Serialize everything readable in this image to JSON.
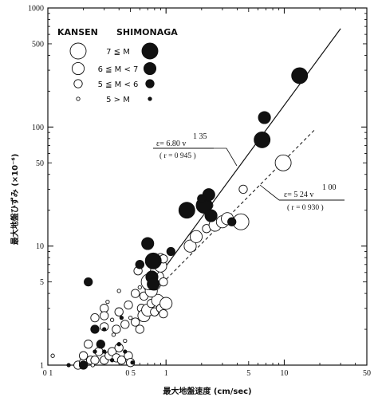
{
  "chart_data": {
    "type": "scatter",
    "x_scale": "log",
    "y_scale": "log",
    "xlim": [
      0.1,
      50
    ],
    "ylim": [
      1,
      1000
    ],
    "xlabel": "最大地盤速度 (cm/sec)",
    "ylabel": "最大地盤ひずみ (×10⁻⁶)",
    "x_tick_labels": [
      {
        "value": 0.1,
        "label": "0 1"
      },
      {
        "value": 0.5,
        "label": "0 5"
      },
      {
        "value": 1,
        "label": "1"
      },
      {
        "value": 5,
        "label": "5"
      },
      {
        "value": 10,
        "label": "10"
      },
      {
        "value": 50,
        "label": "50"
      }
    ],
    "y_tick_labels": [
      {
        "value": 1,
        "label": "1"
      },
      {
        "value": 5,
        "label": "5"
      },
      {
        "value": 10,
        "label": "10"
      },
      {
        "value": 50,
        "label": "50"
      },
      {
        "value": 100,
        "label": "100"
      },
      {
        "value": 500,
        "label": "500"
      },
      {
        "value": 1000,
        "label": "1000"
      }
    ],
    "legend": {
      "col_headers": [
        "KANSEN",
        "SHIMONAGA"
      ],
      "rows": [
        {
          "label": "7 ≦ M",
          "size": 4
        },
        {
          "label": "6 ≦ M < 7",
          "size": 3
        },
        {
          "label": "5 ≦ M < 6",
          "size": 2
        },
        {
          "label": "5 > M",
          "size": 1
        }
      ]
    },
    "fits": [
      {
        "series": "SHIMONAGA",
        "style": "solid",
        "coef": 6.8,
        "exp": 1.35,
        "eq_text": "ε= 6.80 v",
        "exp_text": "1 35",
        "r_text": "( r = 0 945 )"
      },
      {
        "series": "KANSEN",
        "style": "dashed",
        "coef": 5.24,
        "exp": 1.0,
        "eq_text": "ε= 5 24 v",
        "exp_text": "1 00",
        "r_text": "( r = 0 930 )"
      }
    ],
    "series": [
      {
        "name": "KANSEN",
        "marker": "open-circle",
        "points": [
          [
            0.11,
            1.2,
            1
          ],
          [
            0.18,
            1.0,
            2
          ],
          [
            0.2,
            1.05,
            2
          ],
          [
            0.23,
            1.1,
            2
          ],
          [
            0.25,
            1.1,
            2
          ],
          [
            0.24,
            1.0,
            1
          ],
          [
            0.27,
            1.3,
            2
          ],
          [
            0.3,
            1.1,
            2
          ],
          [
            0.29,
            1.5,
            1
          ],
          [
            0.33,
            1.2,
            2
          ],
          [
            0.35,
            1.3,
            2
          ],
          [
            0.38,
            1.15,
            2
          ],
          [
            0.4,
            1.4,
            2
          ],
          [
            0.42,
            1.1,
            2
          ],
          [
            0.45,
            1.6,
            1
          ],
          [
            0.48,
            1.2,
            2
          ],
          [
            0.5,
            1.05,
            2
          ],
          [
            0.36,
            1.8,
            1
          ],
          [
            0.25,
            2.5,
            2
          ],
          [
            0.3,
            2.1,
            2
          ],
          [
            0.3,
            3.0,
            2
          ],
          [
            0.35,
            2.4,
            1
          ],
          [
            0.38,
            2.0,
            2
          ],
          [
            0.4,
            2.8,
            2
          ],
          [
            0.45,
            2.2,
            2
          ],
          [
            0.5,
            2.5,
            1
          ],
          [
            0.55,
            2.3,
            2
          ],
          [
            0.6,
            2.0,
            2
          ],
          [
            0.48,
            3.2,
            2
          ],
          [
            0.62,
            3.0,
            2
          ],
          [
            0.65,
            2.6,
            3
          ],
          [
            0.7,
            2.9,
            3
          ],
          [
            0.75,
            3.3,
            2
          ],
          [
            0.8,
            2.8,
            2
          ],
          [
            0.85,
            3.5,
            3
          ],
          [
            0.9,
            3.0,
            2
          ],
          [
            0.95,
            2.7,
            2
          ],
          [
            1.0,
            3.3,
            3
          ],
          [
            0.55,
            4.0,
            2
          ],
          [
            0.6,
            4.5,
            1
          ],
          [
            0.7,
            4.6,
            2
          ],
          [
            0.65,
            3.8,
            2
          ],
          [
            0.75,
            4.2,
            3
          ],
          [
            0.8,
            4.8,
            3
          ],
          [
            0.72,
            5.0,
            4
          ],
          [
            0.85,
            5.5,
            3
          ],
          [
            0.95,
            5.0,
            2
          ],
          [
            0.8,
            6.2,
            2
          ],
          [
            0.9,
            6.8,
            3
          ],
          [
            0.58,
            6.2,
            2
          ],
          [
            0.6,
            7.0,
            2
          ],
          [
            0.85,
            7.5,
            2
          ],
          [
            0.9,
            8.0,
            2
          ],
          [
            0.95,
            7.8,
            2
          ],
          [
            0.3,
            2.6,
            2
          ],
          [
            0.32,
            3.4,
            1
          ],
          [
            0.4,
            4.2,
            1
          ],
          [
            0.2,
            1.2,
            2
          ],
          [
            0.22,
            1.5,
            2
          ],
          [
            0.21,
            1.0,
            1
          ],
          [
            1.6,
            10,
            3
          ],
          [
            1.8,
            12,
            3
          ],
          [
            2.2,
            14,
            2
          ],
          [
            2.6,
            15,
            3
          ],
          [
            3.0,
            16,
            3
          ],
          [
            3.3,
            17,
            3
          ],
          [
            2.3,
            22,
            2
          ],
          [
            4.5,
            30,
            2
          ],
          [
            4.3,
            16,
            4
          ],
          [
            9.8,
            50,
            4
          ]
        ]
      },
      {
        "name": "SHIMONAGA",
        "marker": "filled-circle",
        "points": [
          [
            0.15,
            1.0,
            1
          ],
          [
            0.2,
            1.0,
            2
          ],
          [
            0.25,
            1.3,
            1
          ],
          [
            0.28,
            1.5,
            2
          ],
          [
            0.3,
            1.3,
            1
          ],
          [
            0.35,
            1.1,
            1
          ],
          [
            0.45,
            1.3,
            1
          ],
          [
            0.52,
            1.05,
            1
          ],
          [
            0.4,
            1.5,
            1
          ],
          [
            0.25,
            2.0,
            2
          ],
          [
            0.3,
            2.0,
            1
          ],
          [
            0.42,
            2.5,
            1
          ],
          [
            0.22,
            5.0,
            2
          ],
          [
            0.7,
            10.5,
            3
          ],
          [
            0.78,
            7.5,
            4
          ],
          [
            0.76,
            5.5,
            3
          ],
          [
            0.78,
            4.8,
            3
          ],
          [
            0.6,
            7.0,
            2
          ],
          [
            1.1,
            9.0,
            2
          ],
          [
            1.5,
            20,
            4
          ],
          [
            2.1,
            22,
            4
          ],
          [
            2.3,
            27,
            3
          ],
          [
            2.4,
            18,
            3
          ],
          [
            2.0,
            25,
            2
          ],
          [
            3.6,
            16,
            2
          ],
          [
            6.5,
            78,
            4
          ],
          [
            6.8,
            120,
            3
          ],
          [
            13.5,
            270,
            4
          ]
        ]
      }
    ]
  }
}
